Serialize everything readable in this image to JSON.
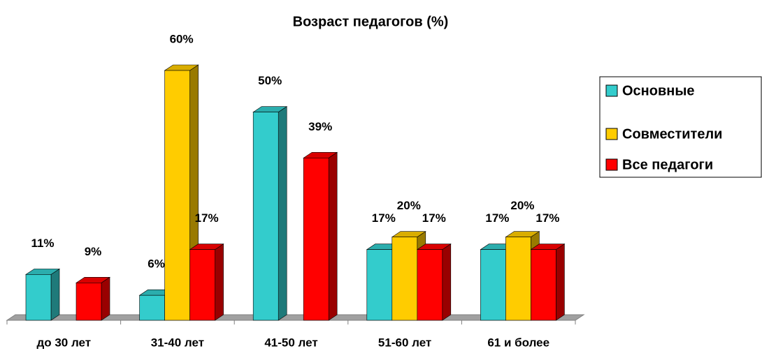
{
  "chart_data": {
    "type": "bar3d",
    "title": "Возраст педагогов (%)",
    "categories": [
      "до 30 лет",
      "31-40 лет",
      "41-50 лет",
      "51-60 лет",
      "61 и более"
    ],
    "series": [
      {
        "name": "Основные",
        "color": "#33CCCC",
        "values": [
          11,
          6,
          50,
          17,
          17
        ],
        "value_labels": [
          "11%",
          "6%",
          "50%",
          "17%",
          "17%"
        ]
      },
      {
        "name": "Совместители",
        "color": "#FFCC00",
        "values": [
          null,
          60,
          null,
          20,
          20
        ],
        "value_labels": [
          null,
          "60%",
          null,
          "20%",
          "20%"
        ]
      },
      {
        "name": "Все педагоги",
        "color": "#FF0000",
        "values": [
          9,
          17,
          39,
          17,
          17
        ],
        "value_labels": [
          "9%",
          "17%",
          "39%",
          "17%",
          "17%"
        ]
      }
    ],
    "legend": "right"
  }
}
